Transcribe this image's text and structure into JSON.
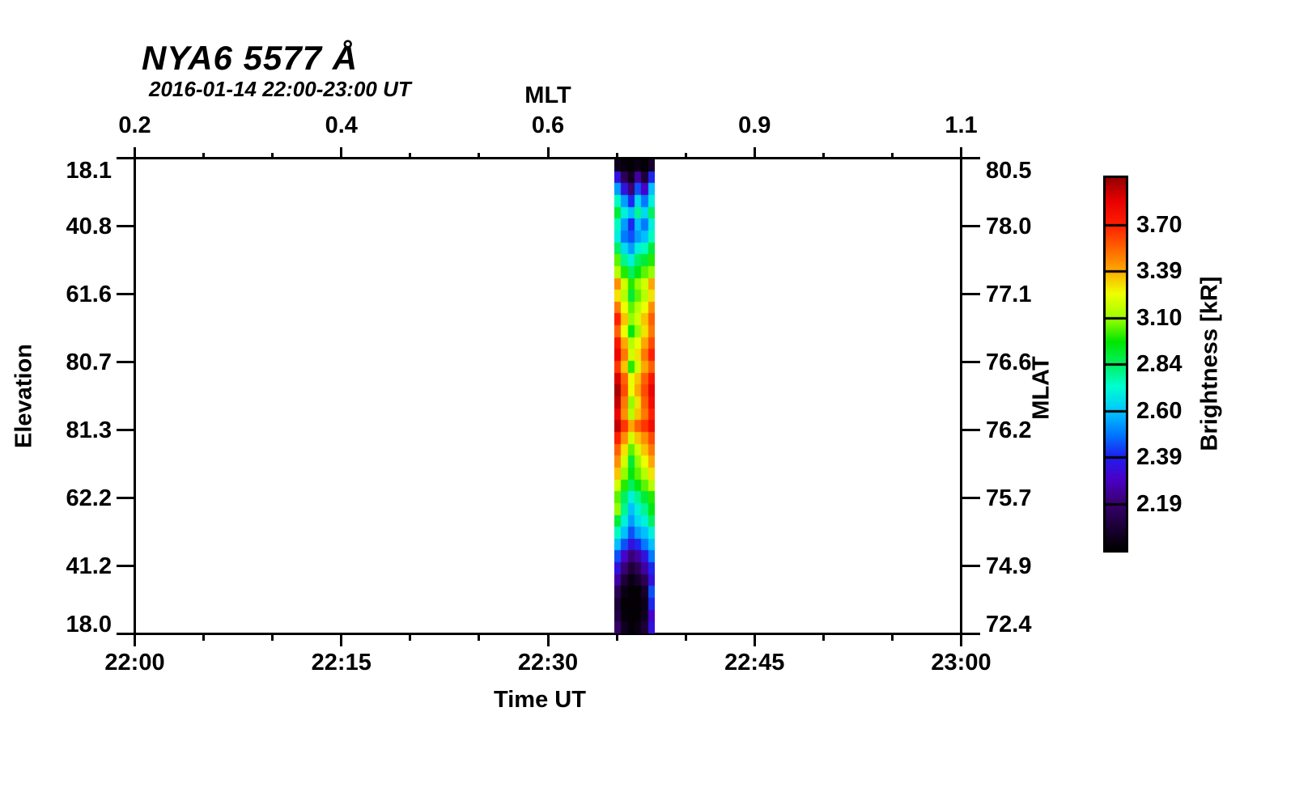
{
  "title": "NYA6 5577 Å",
  "subtitle": "2016-01-14 22:00-23:00 UT",
  "chart_data": {
    "type": "heatmap",
    "description": "Keogram of auroral 5577 A brightness vs elevation and time; single event band near 22:35-22:38 UT, rest of hour has no data (white).",
    "axes": {
      "top": {
        "label": "MLT",
        "tick_labels": [
          "0.2",
          "0.4",
          "0.6",
          "0.9",
          "1.1"
        ],
        "minor_divisions_per_major": 3
      },
      "bottom": {
        "label": "Time UT",
        "tick_labels": [
          "22:00",
          "22:15",
          "22:30",
          "22:45",
          "23:00"
        ],
        "minor_divisions_per_major": 3,
        "range_minutes": [
          0,
          60
        ]
      },
      "left": {
        "label": "Elevation",
        "tick_labels": [
          "18.1",
          "40.8",
          "61.6",
          "80.7",
          "81.3",
          "62.2",
          "41.2",
          "18.0"
        ]
      },
      "right": {
        "label": "MLAT",
        "tick_labels": [
          "80.5",
          "78.0",
          "77.1",
          "76.6",
          "76.2",
          "75.7",
          "74.9",
          "72.4"
        ]
      }
    },
    "colorbar": {
      "label": "Brightness [kR]",
      "tick_labels": [
        "3.70",
        "3.39",
        "3.10",
        "2.84",
        "2.60",
        "2.39",
        "2.19"
      ],
      "scale": "log",
      "value_min": 2.01,
      "value_max": 4.04,
      "segments": 8,
      "colormap_stops": [
        [
          0.0,
          "#000000"
        ],
        [
          0.125,
          "#38006e"
        ],
        [
          0.19,
          "#4a00c8"
        ],
        [
          0.25,
          "#1f1fee"
        ],
        [
          0.31,
          "#0077ff"
        ],
        [
          0.375,
          "#00c8ff"
        ],
        [
          0.44,
          "#00ffd0"
        ],
        [
          0.5,
          "#00f060"
        ],
        [
          0.56,
          "#00e600"
        ],
        [
          0.625,
          "#a0ff00"
        ],
        [
          0.69,
          "#eeff00"
        ],
        [
          0.75,
          "#ffaa00"
        ],
        [
          0.81,
          "#ff6600"
        ],
        [
          0.875,
          "#ff1e00"
        ],
        [
          0.94,
          "#e80000"
        ],
        [
          1.0,
          "#960000"
        ]
      ]
    },
    "event_band": {
      "start_ut": "22:35",
      "end_ut": "22:38",
      "start_minute": 34.8,
      "end_minute": 37.75,
      "unit": "kR",
      "rows_top_to_bottom": "elevation scan 18.1 -> 18.0",
      "values_kr": [
        [
          2.06,
          2.03,
          2.02,
          2.04,
          2.02,
          2.08
        ],
        [
          2.35,
          2.15,
          2.06,
          2.25,
          2.1,
          2.4
        ],
        [
          2.55,
          2.35,
          2.2,
          2.45,
          2.3,
          2.6
        ],
        [
          2.75,
          2.55,
          2.4,
          2.65,
          2.5,
          2.7
        ],
        [
          2.9,
          2.7,
          2.6,
          2.8,
          2.65,
          2.85
        ],
        [
          2.75,
          2.55,
          2.4,
          2.6,
          2.5,
          2.7
        ],
        [
          2.7,
          2.5,
          2.45,
          2.55,
          2.6,
          2.75
        ],
        [
          2.85,
          2.65,
          2.55,
          2.7,
          2.75,
          2.9
        ],
        [
          3.05,
          2.8,
          2.7,
          2.85,
          2.9,
          3.0
        ],
        [
          3.15,
          3.0,
          2.85,
          2.95,
          3.05,
          3.1
        ],
        [
          3.45,
          3.2,
          3.0,
          3.1,
          3.2,
          3.4
        ],
        [
          3.3,
          3.15,
          2.9,
          3.05,
          3.15,
          3.3
        ],
        [
          3.5,
          3.25,
          3.05,
          3.15,
          3.25,
          3.45
        ],
        [
          3.7,
          3.35,
          3.1,
          3.2,
          3.35,
          3.55
        ],
        [
          3.55,
          3.25,
          2.95,
          3.1,
          3.3,
          3.5
        ],
        [
          3.75,
          3.4,
          3.15,
          3.25,
          3.4,
          3.6
        ],
        [
          3.85,
          3.5,
          3.2,
          3.3,
          3.5,
          3.7
        ],
        [
          3.65,
          3.35,
          3.0,
          3.2,
          3.4,
          3.55
        ],
        [
          3.9,
          3.55,
          3.25,
          3.35,
          3.55,
          3.75
        ],
        [
          4.0,
          3.6,
          3.25,
          3.4,
          3.6,
          3.85
        ],
        [
          3.95,
          3.5,
          3.1,
          3.3,
          3.55,
          3.8
        ],
        [
          3.85,
          3.45,
          3.15,
          3.35,
          3.5,
          3.7
        ],
        [
          3.95,
          3.65,
          3.4,
          3.55,
          3.65,
          3.8
        ],
        [
          3.7,
          3.45,
          3.2,
          3.35,
          3.45,
          3.6
        ],
        [
          3.55,
          3.3,
          3.05,
          3.2,
          3.35,
          3.5
        ],
        [
          3.45,
          3.2,
          2.9,
          3.1,
          3.25,
          3.4
        ],
        [
          3.35,
          3.1,
          2.95,
          3.05,
          3.15,
          3.3
        ],
        [
          3.2,
          3.0,
          2.85,
          2.95,
          3.05,
          3.15
        ],
        [
          3.05,
          2.85,
          2.7,
          2.8,
          2.9,
          3.0
        ],
        [
          3.1,
          2.8,
          2.6,
          2.7,
          2.8,
          2.95
        ],
        [
          2.9,
          2.7,
          2.55,
          2.65,
          2.7,
          2.85
        ],
        [
          2.75,
          2.6,
          2.45,
          2.55,
          2.6,
          2.7
        ],
        [
          2.6,
          2.45,
          2.35,
          2.4,
          2.5,
          2.6
        ],
        [
          2.45,
          2.3,
          2.2,
          2.25,
          2.35,
          2.5
        ],
        [
          2.35,
          2.2,
          2.1,
          2.15,
          2.25,
          2.4
        ],
        [
          2.25,
          2.1,
          2.04,
          2.08,
          2.15,
          2.35
        ],
        [
          2.15,
          2.04,
          2.02,
          2.02,
          2.08,
          2.45
        ],
        [
          2.1,
          2.02,
          2.02,
          2.02,
          2.05,
          2.4
        ],
        [
          2.12,
          2.03,
          2.02,
          2.02,
          2.06,
          2.3
        ],
        [
          2.18,
          2.06,
          2.02,
          2.04,
          2.1,
          2.35
        ]
      ]
    }
  }
}
